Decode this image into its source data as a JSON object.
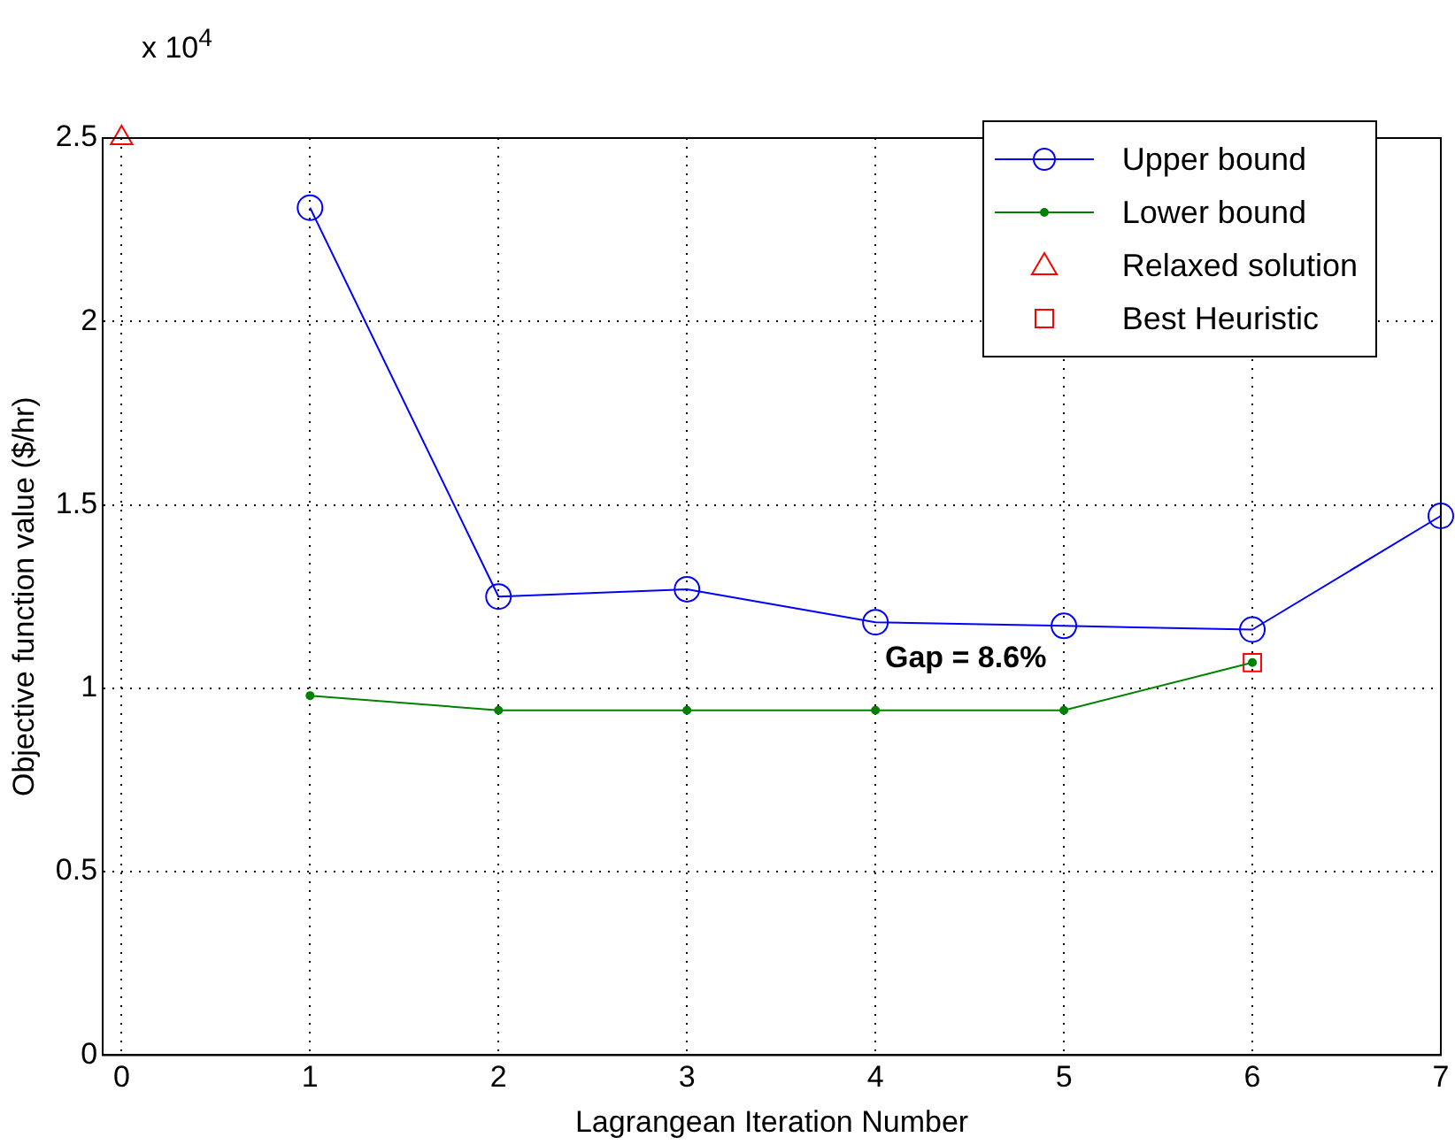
{
  "chart_data": {
    "type": "line",
    "xlabel": "Lagrangean Iteration Number",
    "ylabel": "Objective function value ($/hr)",
    "xlim": [
      -0.1,
      7
    ],
    "xticks": [
      0,
      1,
      2,
      3,
      4,
      5,
      6,
      7
    ],
    "ylim": [
      0,
      2.5
    ],
    "yticks": [
      0,
      0.5,
      1,
      1.5,
      2,
      2.5
    ],
    "grid": true,
    "legend": "top right",
    "annotations": [
      "x 10$^{4}$",
      "Gap = 8.6%"
    ],
    "series": [
      {
        "name": "Upper bound",
        "marker": "circle",
        "color": "#0000ff",
        "x": [
          1,
          2,
          3,
          4,
          5,
          6,
          7
        ],
        "values": [
          2.31,
          1.25,
          1.27,
          1.18,
          1.17,
          1.16,
          1.47
        ]
      },
      {
        "name": "Lower bound",
        "marker": "circle",
        "color": "#008000",
        "x": [
          1,
          2,
          3,
          4,
          5,
          6
        ],
        "values": [
          0.98,
          0.94,
          0.94,
          0.94,
          0.94,
          1.07
        ]
      },
      {
        "name": "Relaxed solution",
        "type": "scatter",
        "marker": "triangle",
        "color": "#ff0000",
        "x": [
          0
        ],
        "values": [
          2.5
        ]
      },
      {
        "name": "Best Heuristic",
        "type": "scatter",
        "marker": "square",
        "color": "#ff0000",
        "x": [
          6
        ],
        "values": [
          1.07
        ]
      }
    ]
  }
}
